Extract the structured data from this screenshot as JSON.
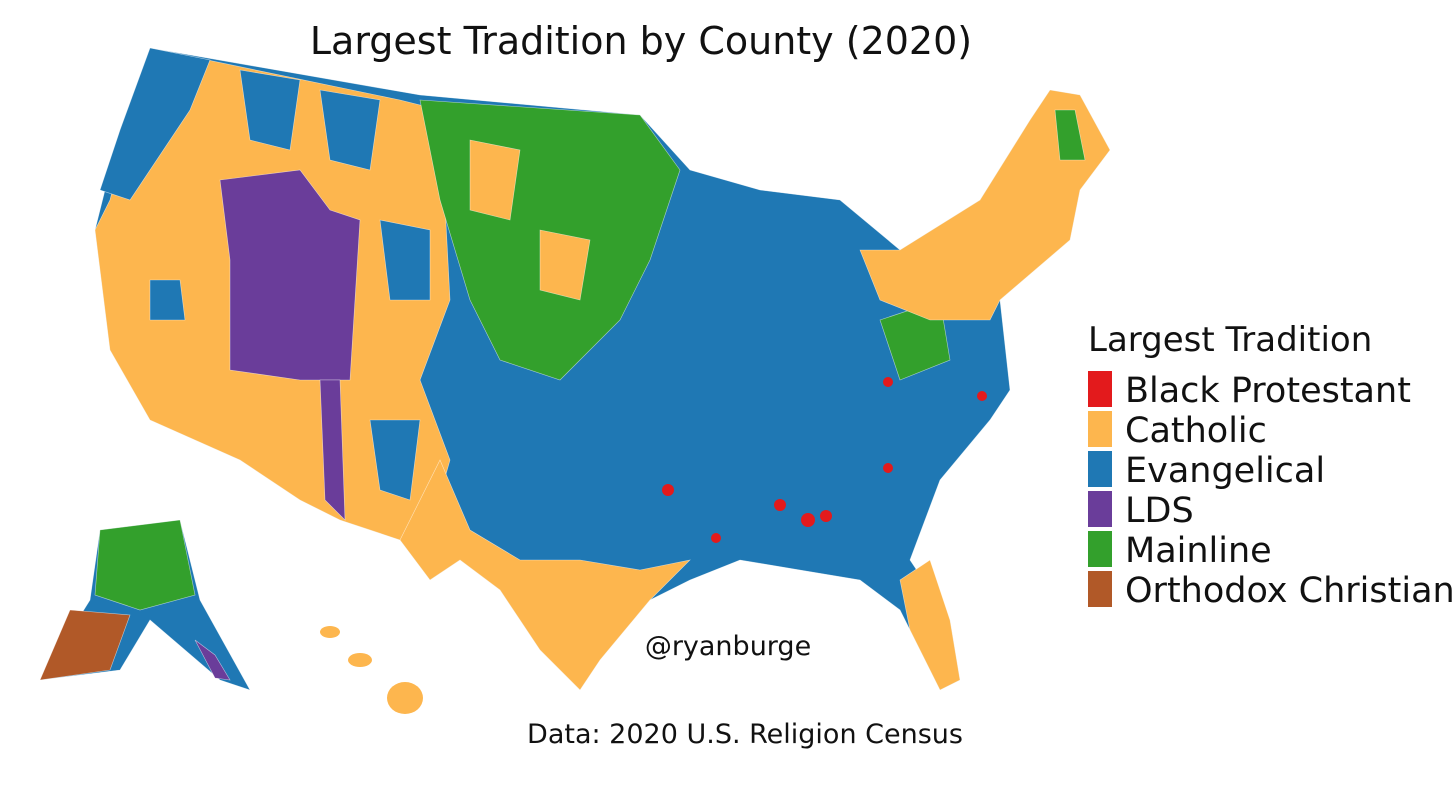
{
  "title": "Largest Tradition by County (2020)",
  "legend": {
    "title": "Largest Tradition",
    "items": [
      {
        "label": "Black Protestant",
        "color": "#e31a1c"
      },
      {
        "label": "Catholic",
        "color": "#fdb64e"
      },
      {
        "label": "Evangelical",
        "color": "#1f78b4"
      },
      {
        "label": "LDS",
        "color": "#6a3d9a"
      },
      {
        "label": "Mainline",
        "color": "#33a02c"
      },
      {
        "label": "Orthodox Christian",
        "color": "#b15928"
      }
    ]
  },
  "credit": "@ryanburge",
  "source": "Data: 2020 U.S. Religion Census"
}
